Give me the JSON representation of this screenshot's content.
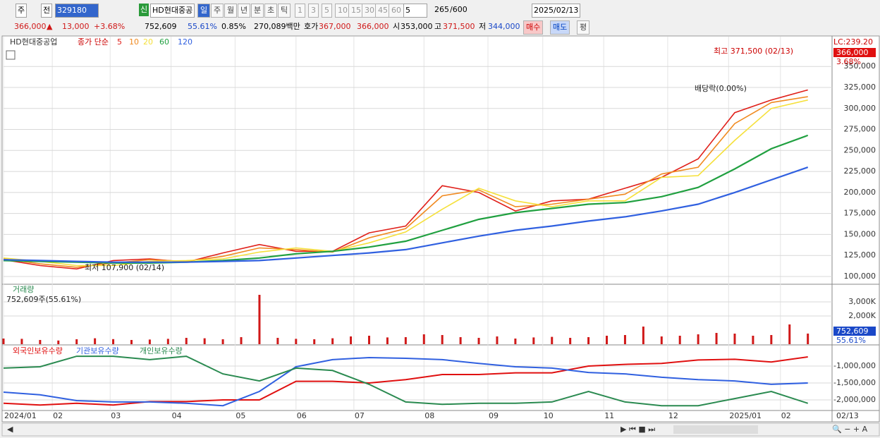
{
  "toolbar": {
    "market": "주",
    "prev": "전",
    "code": "329180",
    "flag": "신",
    "name": "HD현대중공",
    "periods": [
      "일",
      "주",
      "월",
      "년",
      "분",
      "초",
      "틱"
    ],
    "minutes": [
      "1",
      "3",
      "5",
      "10",
      "15",
      "30",
      "45",
      "60"
    ],
    "unit": "5",
    "count": "265",
    "count_max": "/600",
    "date": "2025/02/13"
  },
  "quote": {
    "price": "366,000",
    "arrow": "▲",
    "change": "13,000",
    "change_rate": "+3.68%",
    "volume": "752,609",
    "volume_ratio": "55.61%",
    "turnover": "0.85%",
    "amount": "270,089백만",
    "ask_label": "호가",
    "ask": "367,000",
    "bid": "366,000",
    "open_label": "시",
    "open": "353,000",
    "high_label": "고",
    "high": "371,500",
    "low_label": "저",
    "low": "344,000",
    "buy": "매수",
    "sell": "매도",
    "avg": "평"
  },
  "price_chart": {
    "stock_name": "HD현대중공업",
    "ma_label": "종가 단순",
    "x": [
      0,
      12,
      24,
      36,
      48,
      60,
      72,
      84,
      96,
      108,
      120,
      132,
      144,
      156,
      168,
      180,
      192,
      204,
      216,
      228,
      240,
      252,
      264
    ],
    "series": [
      {
        "name": "5",
        "color": "#e0201a",
        "values": [
          120000,
          113000,
          109000,
          119000,
          121000,
          117000,
          128000,
          138000,
          130000,
          130000,
          152000,
          160000,
          208000,
          200000,
          178000,
          190000,
          192000,
          205000,
          218000,
          240000,
          295000,
          310000,
          322000
        ]
      },
      {
        "name": "10",
        "color": "#f08a20",
        "values": [
          121000,
          115000,
          111000,
          116000,
          120000,
          118000,
          124000,
          134000,
          132000,
          129000,
          146000,
          157000,
          196000,
          203000,
          183000,
          186000,
          192000,
          198000,
          222000,
          230000,
          282000,
          307000,
          314000
        ]
      },
      {
        "name": "20",
        "color": "#f5e03a",
        "values": [
          122000,
          118000,
          113000,
          113000,
          118000,
          119000,
          121000,
          129000,
          134000,
          130000,
          140000,
          153000,
          180000,
          205000,
          190000,
          183000,
          190000,
          190000,
          218000,
          220000,
          262000,
          300000,
          310000
        ]
      },
      {
        "name": "60",
        "color": "#20a040",
        "values": [
          119000,
          118000,
          117000,
          116000,
          116000,
          117000,
          119000,
          122000,
          127000,
          130000,
          135000,
          142000,
          155000,
          168000,
          176000,
          181000,
          186000,
          188000,
          195000,
          206000,
          228000,
          252000,
          268000
        ]
      },
      {
        "name": "120",
        "color": "#3060e0",
        "values": [
          120000,
          119000,
          118000,
          117000,
          117000,
          117000,
          118000,
          119000,
          122000,
          125000,
          128000,
          132000,
          140000,
          148000,
          155000,
          160000,
          166000,
          171000,
          178000,
          186000,
          200000,
          215000,
          230000
        ]
      }
    ],
    "ylim": [
      91600,
      382900
    ],
    "yticks": [
      {
        "value": 100000,
        "label": "100,000"
      },
      {
        "value": 125000,
        "label": "125,000"
      },
      {
        "value": 150000,
        "label": "150,000"
      },
      {
        "value": 175000,
        "label": "175,000"
      },
      {
        "value": 200000,
        "label": "200,000"
      },
      {
        "value": 225000,
        "label": "225,000"
      },
      {
        "value": 250000,
        "label": "250,000"
      },
      {
        "value": 275000,
        "label": "275,000"
      },
      {
        "value": 300000,
        "label": "300,000"
      },
      {
        "value": 325000,
        "label": "325,000"
      },
      {
        "value": 350000,
        "label": "350,000"
      }
    ],
    "high_note": "최고 371,500 (02/13)",
    "low_note": "최저 107,900 (02/14)",
    "dividend_note": "배당락(0.00%)",
    "lc_label": "LC:239.20",
    "last_price_tag": "366,000",
    "last_rate_tag": "3.68%"
  },
  "volume_chart": {
    "title": "거래량",
    "summary": "752,609주(55.61%)",
    "color": "#d01818",
    "x": [
      0,
      6,
      12,
      18,
      24,
      30,
      36,
      42,
      48,
      54,
      60,
      66,
      72,
      78,
      84,
      90,
      96,
      102,
      108,
      114,
      120,
      126,
      132,
      138,
      144,
      150,
      156,
      162,
      168,
      174,
      180,
      186,
      192,
      198,
      204,
      210,
      216,
      222,
      228,
      234,
      240,
      246,
      252,
      258,
      264
    ],
    "values": [
      400000,
      380000,
      300000,
      260000,
      350000,
      420000,
      360000,
      300000,
      330000,
      380000,
      450000,
      420000,
      350000,
      500000,
      3500000,
      450000,
      380000,
      350000,
      420000,
      550000,
      600000,
      480000,
      500000,
      700000,
      650000,
      500000,
      450000,
      550000,
      400000,
      480000,
      520000,
      450000,
      500000,
      600000,
      650000,
      1250000,
      550000,
      600000,
      700000,
      800000,
      750000,
      600000,
      650000,
      1400000,
      752609
    ],
    "ylim": [
      0,
      4150000
    ],
    "yticks": [
      {
        "value": 2000000,
        "label": "2,000K"
      },
      {
        "value": 3000000,
        "label": "3,000K"
      }
    ],
    "last_tag": "752,609",
    "last_ratio_tag": "55.61%"
  },
  "holdings_chart": {
    "x": [
      0,
      12,
      24,
      36,
      48,
      60,
      72,
      84,
      96,
      108,
      120,
      132,
      144,
      156,
      168,
      180,
      192,
      204,
      216,
      228,
      240,
      252,
      264
    ],
    "series": [
      {
        "name": "외국인보유수량",
        "color": "#e01010",
        "values": [
          -2100000,
          -2150000,
          -2100000,
          -2150000,
          -2050000,
          -2050000,
          -2000000,
          -2000000,
          -1450000,
          -1450000,
          -1500000,
          -1400000,
          -1250000,
          -1250000,
          -1200000,
          -1200000,
          -1000000,
          -950000,
          -920000,
          -820000,
          -800000,
          -880000,
          -730000
        ]
      },
      {
        "name": "기관보유수량",
        "color": "#3060e0",
        "values": [
          -1770000,
          -1850000,
          -2020000,
          -2060000,
          -2060000,
          -2100000,
          -2170000,
          -1750000,
          -1020000,
          -810000,
          -750000,
          -770000,
          -810000,
          -920000,
          -1020000,
          -1060000,
          -1190000,
          -1230000,
          -1330000,
          -1400000,
          -1440000,
          -1540000,
          -1500000
        ]
      },
      {
        "name": "개인보유수량",
        "color": "#2a8a50",
        "values": [
          -1060000,
          -1020000,
          -710000,
          -710000,
          -810000,
          -710000,
          -1230000,
          -1440000,
          -1060000,
          -1130000,
          -1540000,
          -2060000,
          -2130000,
          -2100000,
          -2100000,
          -2060000,
          -1750000,
          -2060000,
          -2170000,
          -2170000,
          -1960000,
          -1750000,
          -2100000
        ]
      }
    ],
    "ylim": [
      -2270000,
      -396000
    ],
    "yticks": [
      {
        "value": -2000000,
        "label": "-2,000,000"
      },
      {
        "value": -1500000,
        "label": "-1,500,000"
      },
      {
        "value": -1000000,
        "label": "-1,000,000"
      }
    ]
  },
  "x_axis": {
    "xlim": [
      0,
      265
    ],
    "ticks": [
      {
        "value": 0,
        "label": "2024/01"
      },
      {
        "value": 16,
        "label": "02"
      },
      {
        "value": 35,
        "label": "03"
      },
      {
        "value": 55,
        "label": "04"
      },
      {
        "value": 76,
        "label": "05"
      },
      {
        "value": 96,
        "label": "06"
      },
      {
        "value": 115,
        "label": "07"
      },
      {
        "value": 138,
        "label": "08"
      },
      {
        "value": 159,
        "label": "09"
      },
      {
        "value": 177,
        "label": "10"
      },
      {
        "value": 197,
        "label": "11"
      },
      {
        "value": 218,
        "label": "12"
      },
      {
        "value": 238,
        "label": "2025/01"
      },
      {
        "value": 255,
        "label": "02"
      }
    ],
    "last_date": "02/13"
  }
}
